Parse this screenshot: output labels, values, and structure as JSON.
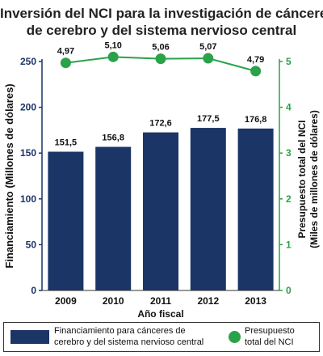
{
  "title_lines": [
    "Inversión del NCI para la investigación de cánceres",
    "de cerebro y del sistema nervioso central"
  ],
  "legend": {
    "bar_line1": "Financiamiento para cánceres de",
    "bar_line2": "cerebro y del sistema nervioso central",
    "dot_line1": "Presupuesto",
    "dot_line2": "total del NCI"
  },
  "colors": {
    "bar": "#1b3566",
    "line": "#2aa24a",
    "left_axis": "#1b3566",
    "right_axis": "#2aa24a"
  },
  "chart_data": {
    "type": "bar",
    "title": "Inversión del NCI para la investigación de cánceres de cerebro y del sistema nervioso central",
    "xlabel": "Año fiscal",
    "categories": [
      "2009",
      "2010",
      "2011",
      "2012",
      "2013"
    ],
    "series": [
      {
        "name": "Financiamiento para cánceres de cerebro y del sistema nervioso central",
        "type": "bar",
        "axis": "left",
        "values": [
          151.5,
          156.8,
          172.6,
          177.5,
          176.8
        ],
        "labels": [
          "151,5",
          "156,8",
          "172,6",
          "177,5",
          "176,8"
        ]
      },
      {
        "name": "Presupuesto total del NCI",
        "type": "line",
        "axis": "right",
        "values": [
          4.97,
          5.1,
          5.06,
          5.07,
          4.79
        ],
        "labels": [
          "4,97",
          "5,10",
          "5,06",
          "5,07",
          "4,79"
        ]
      }
    ],
    "y_left": {
      "label": "Financiamiento (Millones de dólares)",
      "ylim": [
        0,
        250
      ],
      "ticks": [
        0,
        50,
        100,
        150,
        200,
        250
      ]
    },
    "y_right": {
      "label_line1": "Presupuesto total del NCI",
      "label_line2": "(Miles de millones de dólares)",
      "ylim": [
        0,
        5
      ],
      "ticks": [
        0,
        1,
        2,
        3,
        4,
        5
      ]
    },
    "grid": false,
    "legend_position": "bottom"
  }
}
